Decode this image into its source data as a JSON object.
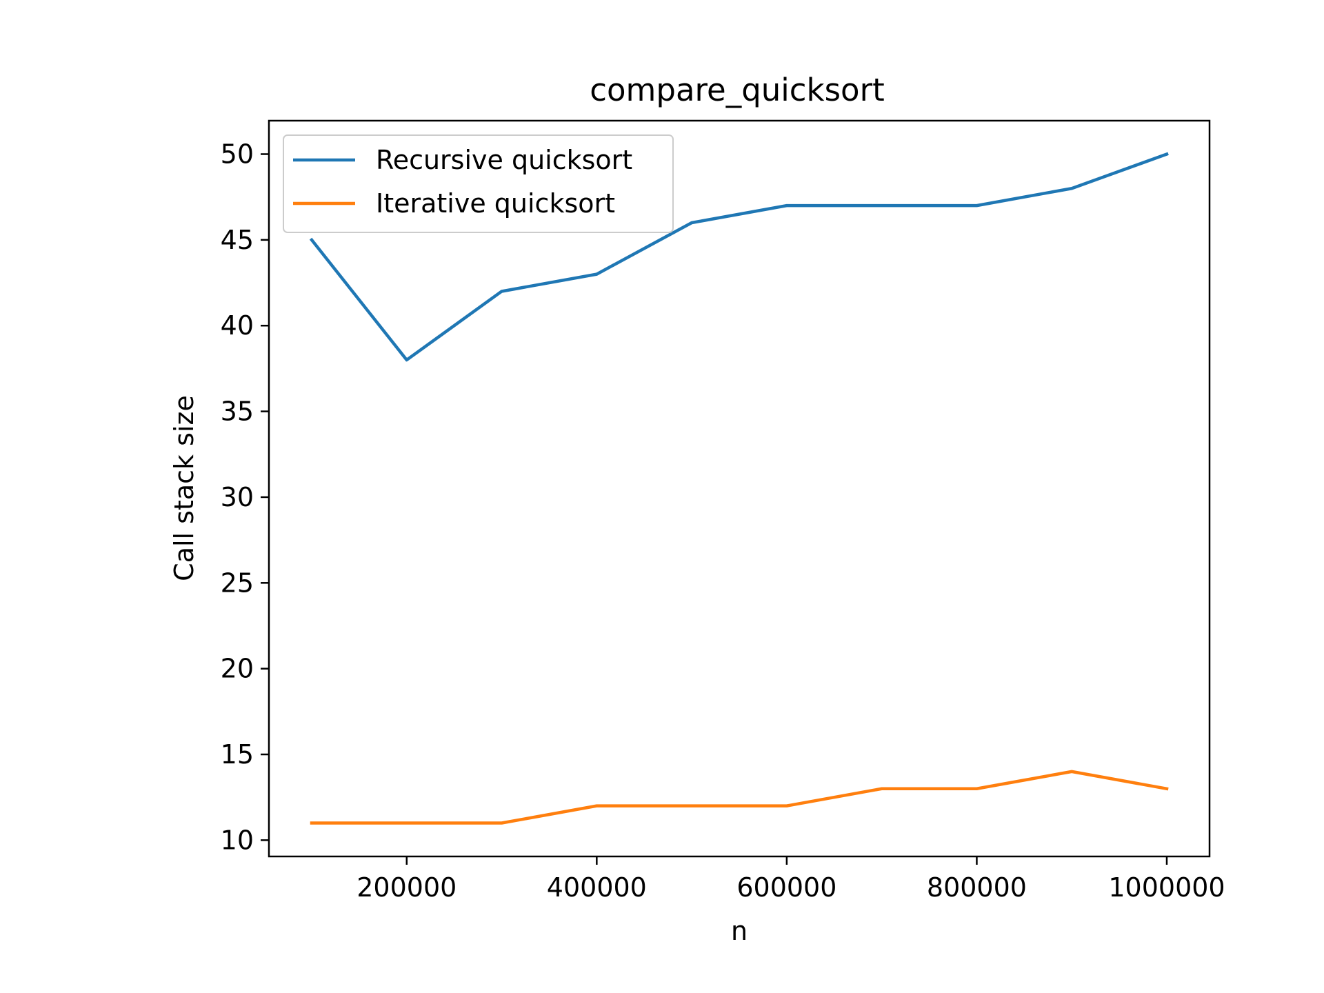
{
  "chart_data": {
    "type": "line",
    "title": "compare_quicksort",
    "xlabel": "n",
    "ylabel": "Call stack size",
    "x": [
      100000,
      200000,
      300000,
      400000,
      500000,
      600000,
      700000,
      800000,
      900000,
      1000000
    ],
    "series": [
      {
        "name": "Recursive quicksort",
        "color": "#1f77b4",
        "values": [
          45,
          38,
          42,
          43,
          46,
          47,
          47,
          47,
          48,
          50
        ]
      },
      {
        "name": "Iterative quicksort",
        "color": "#ff7f0e",
        "values": [
          11,
          11,
          11,
          12,
          12,
          12,
          13,
          13,
          14,
          13
        ]
      }
    ],
    "xlim": [
      55000,
      1045000
    ],
    "ylim": [
      9.05,
      51.95
    ],
    "xticks": [
      200000,
      400000,
      600000,
      800000,
      1000000
    ],
    "xtick_labels": [
      "200000",
      "400000",
      "600000",
      "800000",
      "1000000"
    ],
    "yticks": [
      10,
      15,
      20,
      25,
      30,
      35,
      40,
      45,
      50
    ],
    "ytick_labels": [
      "10",
      "15",
      "20",
      "25",
      "30",
      "35",
      "40",
      "45",
      "50"
    ],
    "grid": false,
    "legend_position": "upper-left"
  }
}
